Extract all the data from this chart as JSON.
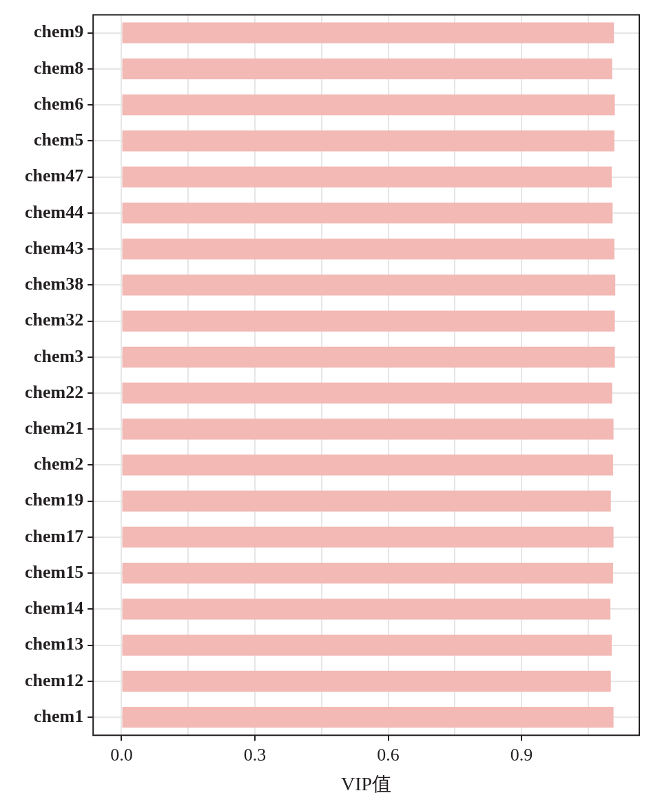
{
  "chart_data": {
    "type": "bar",
    "orientation": "horizontal",
    "xlabel": "VIP值",
    "categories": [
      "chem9",
      "chem8",
      "chem6",
      "chem5",
      "chem47",
      "chem44",
      "chem43",
      "chem38",
      "chem32",
      "chem3",
      "chem22",
      "chem21",
      "chem2",
      "chem19",
      "chem17",
      "chem15",
      "chem14",
      "chem13",
      "chem12",
      "chem1"
    ],
    "values": [
      1.108,
      1.104,
      1.11,
      1.109,
      1.103,
      1.105,
      1.109,
      1.111,
      1.11,
      1.11,
      1.104,
      1.107,
      1.106,
      1.101,
      1.107,
      1.106,
      1.1,
      1.103,
      1.101,
      1.107
    ],
    "color": "#f2b9b5",
    "xlim": [
      -0.064,
      1.165
    ],
    "xticks": [
      {
        "value": 0,
        "label": "0.0"
      },
      {
        "value": 0.15,
        "label": null
      },
      {
        "value": 0.3,
        "label": "0.3"
      },
      {
        "value": 0.45,
        "label": null
      },
      {
        "value": 0.6,
        "label": "0.6"
      },
      {
        "value": 0.75,
        "label": null
      },
      {
        "value": 0.9,
        "label": "0.9"
      },
      {
        "value": 1.05,
        "label": null
      }
    ],
    "grid": true
  }
}
